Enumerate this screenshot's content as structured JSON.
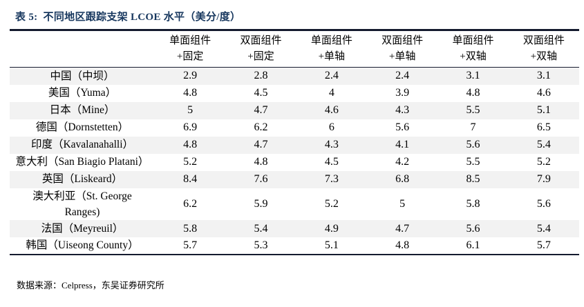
{
  "title": "表 5:  不同地区跟踪支架 LCOE 水平（美分/度）",
  "accent_color": "#17375e",
  "stripe_color": "#f2f2f2",
  "table": {
    "column_headers": [
      {
        "line1": "单面组件",
        "line2": "+固定"
      },
      {
        "line1": "双面组件",
        "line2": "+固定"
      },
      {
        "line1": "单面组件",
        "line2": "+单轴"
      },
      {
        "line1": "双面组件",
        "line2": "+单轴"
      },
      {
        "line1": "单面组件",
        "line2": "+双轴"
      },
      {
        "line1": "双面组件",
        "line2": "+双轴"
      }
    ],
    "rows": [
      {
        "region": "中国（中坝）",
        "values": [
          "2.9",
          "2.8",
          "2.4",
          "2.4",
          "3.1",
          "3.1"
        ]
      },
      {
        "region": "美国（Yuma）",
        "values": [
          "4.8",
          "4.5",
          "4",
          "3.9",
          "4.8",
          "4.6"
        ]
      },
      {
        "region": "日本（Mine）",
        "values": [
          "5",
          "4.7",
          "4.6",
          "4.3",
          "5.5",
          "5.1"
        ]
      },
      {
        "region": "德国（Dornstetten）",
        "values": [
          "6.9",
          "6.2",
          "6",
          "5.6",
          "7",
          "6.5"
        ]
      },
      {
        "region": "印度（Kavalanahalli）",
        "values": [
          "4.8",
          "4.7",
          "4.3",
          "4.1",
          "5.6",
          "5.4"
        ]
      },
      {
        "region": "意大利（San Biagio Platani）",
        "values": [
          "5.2",
          "4.8",
          "4.5",
          "4.2",
          "5.5",
          "5.2"
        ]
      },
      {
        "region": "英国（Liskeard）",
        "values": [
          "8.4",
          "7.6",
          "7.3",
          "6.8",
          "8.5",
          "7.9"
        ]
      },
      {
        "region": "澳大利亚（St. George Ranges)",
        "values": [
          "6.2",
          "5.9",
          "5.2",
          "5",
          "5.8",
          "5.6"
        ]
      },
      {
        "region": "法国（Meyreuil）",
        "values": [
          "5.8",
          "5.4",
          "4.9",
          "4.7",
          "5.6",
          "5.4"
        ]
      },
      {
        "region": "韩国（Uiseong County）",
        "values": [
          "5.7",
          "5.3",
          "5.1",
          "4.8",
          "6.1",
          "5.7"
        ]
      }
    ]
  },
  "footer": {
    "source": "数据来源：Celpress，东吴证券研究所"
  }
}
